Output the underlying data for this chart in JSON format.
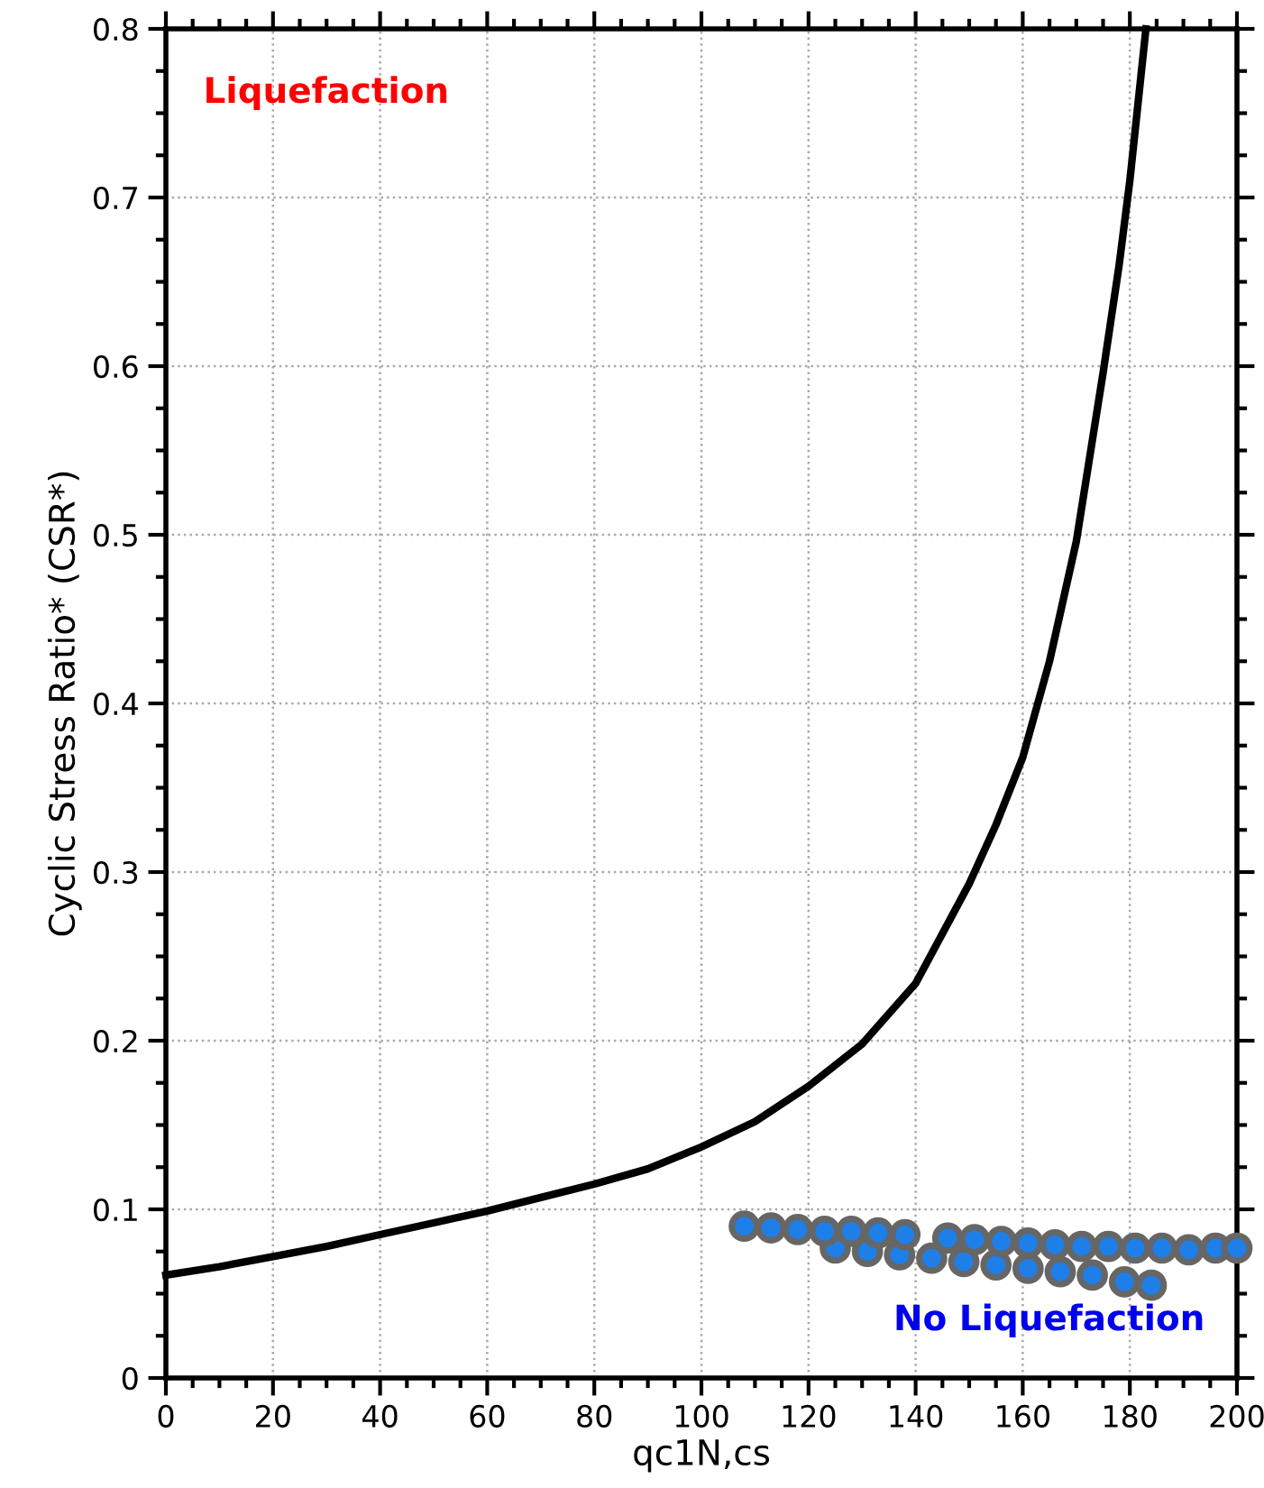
{
  "chart_data": {
    "type": "scatter",
    "xlabel": "qc1N,cs",
    "ylabel": "Cyclic Stress Ratio* (CSR*)",
    "xlim": [
      0,
      200
    ],
    "xticks": [
      0,
      20,
      40,
      60,
      80,
      100,
      120,
      140,
      160,
      180,
      200
    ],
    "ylim": [
      0,
      0.8
    ],
    "yticks": [
      0,
      0.1,
      0.2,
      0.3,
      0.4,
      0.5,
      0.6,
      0.7,
      0.8
    ],
    "grid": true,
    "legend": false,
    "annotations": [
      "Liquefaction",
      "No Liquefaction"
    ],
    "series": [
      {
        "type": "line",
        "color": "#000000",
        "marker": "none",
        "line_style": "solid",
        "x": [
          0,
          10,
          20,
          30,
          40,
          50,
          60,
          70,
          80,
          90,
          100,
          110,
          120,
          130,
          140,
          150,
          155,
          160,
          165,
          170,
          175,
          178,
          180,
          182,
          183
        ],
        "values": [
          0.061,
          0.066,
          0.072,
          0.078,
          0.085,
          0.092,
          0.099,
          0.107,
          0.115,
          0.124,
          0.137,
          0.152,
          0.173,
          0.198,
          0.234,
          0.293,
          0.328,
          0.368,
          0.425,
          0.496,
          0.596,
          0.66,
          0.71,
          0.77,
          0.8
        ]
      },
      {
        "color": "#1e7fe8",
        "marker": "circle",
        "x": [
          108,
          113,
          118,
          123,
          128,
          133,
          138,
          146,
          151,
          156,
          161,
          166,
          171,
          176,
          181,
          186,
          191,
          196,
          200
        ],
        "values": [
          0.09,
          0.089,
          0.088,
          0.087,
          0.087,
          0.086,
          0.085,
          0.083,
          0.082,
          0.081,
          0.08,
          0.079,
          0.078,
          0.078,
          0.077,
          0.077,
          0.076,
          0.077,
          0.077
        ]
      },
      {
        "color": "#1e7fe8",
        "marker": "circle",
        "x": [
          125,
          131,
          137,
          143,
          149,
          155,
          161,
          167,
          173,
          179,
          184
        ],
        "values": [
          0.077,
          0.075,
          0.073,
          0.071,
          0.069,
          0.067,
          0.065,
          0.063,
          0.061,
          0.057,
          0.055
        ]
      }
    ]
  }
}
